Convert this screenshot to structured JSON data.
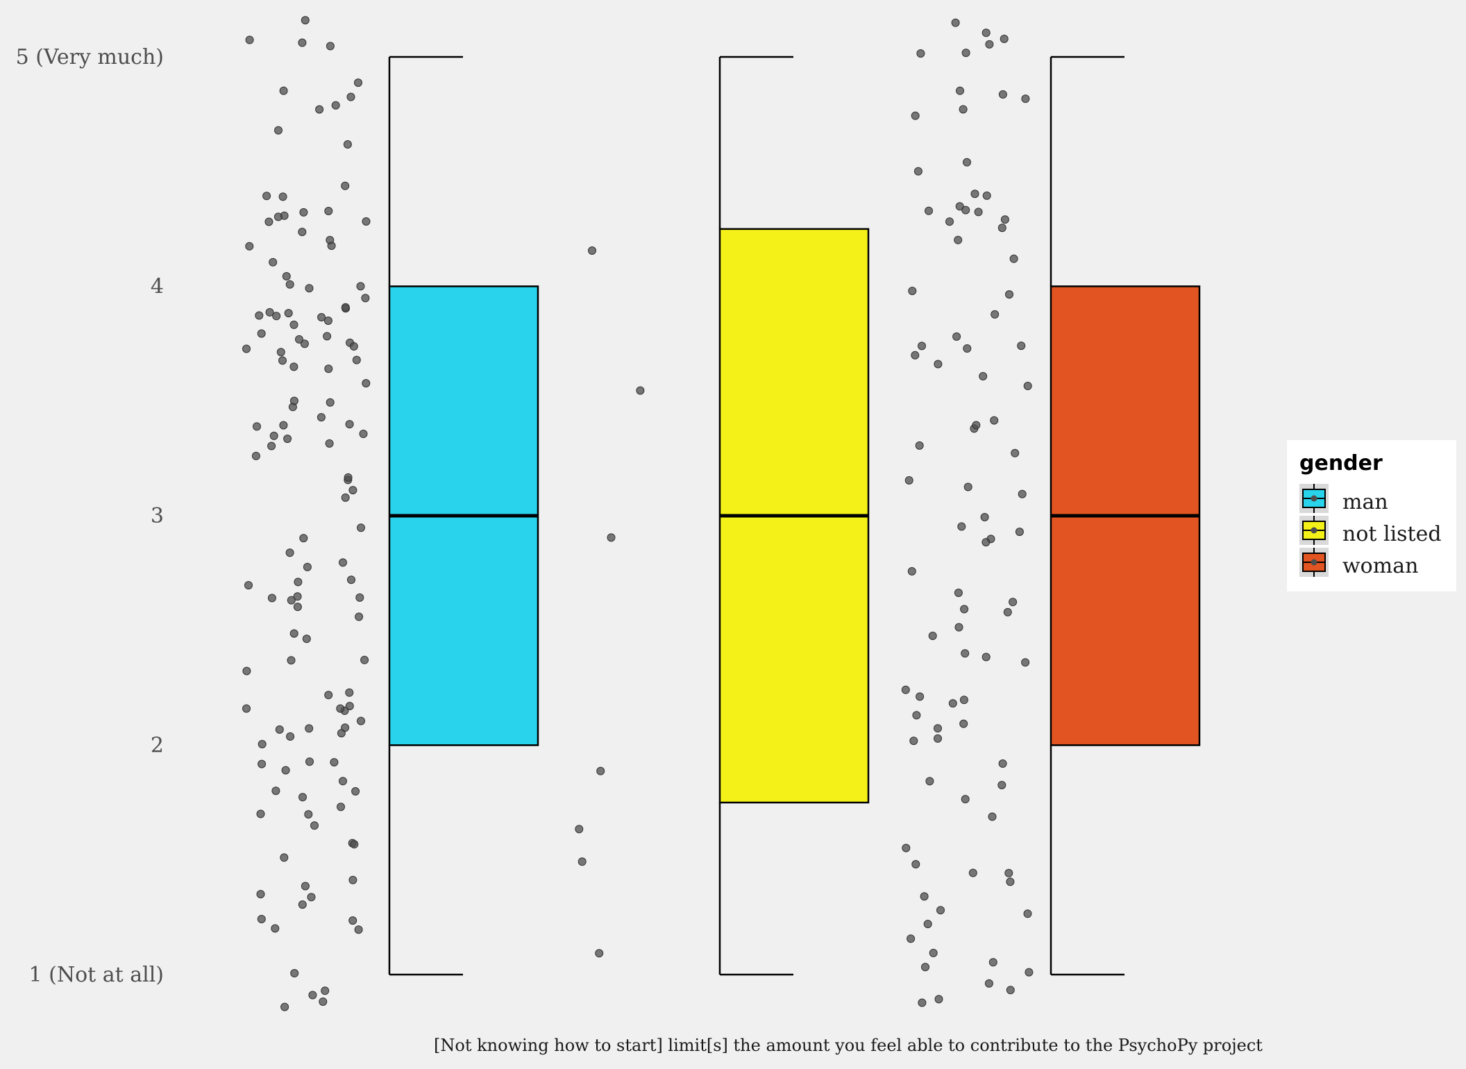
{
  "chart_data": {
    "type": "boxplot",
    "xlabel": "[Not knowing how to start] limit[s] the amount you feel able to contribute to the PsychoPy project",
    "ylim": [
      0.8,
      5.2
    ],
    "y_ticks": [
      {
        "value": 5,
        "label": "5 (Very much)"
      },
      {
        "value": 4,
        "label": "4"
      },
      {
        "value": 3,
        "label": "3"
      },
      {
        "value": 2,
        "label": "2"
      },
      {
        "value": 1,
        "label": "1 (Not at all)"
      }
    ],
    "legend": {
      "title": "gender",
      "placement": "right",
      "entries": [
        "man",
        "not listed",
        "woman"
      ]
    },
    "series": [
      {
        "name": "man",
        "color": "#29d3eb",
        "min": 1,
        "q1": 2,
        "median": 3,
        "q3": 4,
        "max": 5,
        "point_count": 130
      },
      {
        "name": "not listed",
        "color": "#f4f118",
        "min": 1,
        "q1": 1.75,
        "median": 3,
        "q3": 4.25,
        "max": 5,
        "point_count": 7
      },
      {
        "name": "woman",
        "color": "#e25421",
        "min": 1,
        "q1": 2,
        "median": 3,
        "q3": 4,
        "max": 5,
        "point_count": 90
      }
    ],
    "grid": false
  }
}
